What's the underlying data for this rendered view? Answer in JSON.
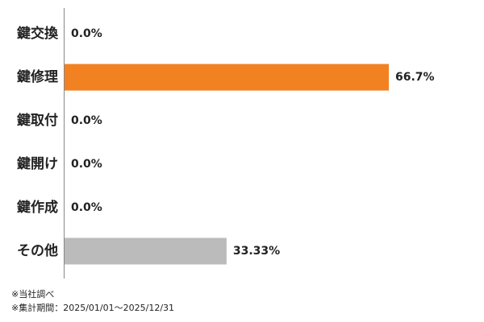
{
  "chart_data": {
    "type": "bar",
    "orientation": "horizontal",
    "categories": [
      "鍵交換",
      "鍵修理",
      "鍵取付",
      "鍵開け",
      "鍵作成",
      "その他"
    ],
    "values": [
      0,
      66.7,
      0,
      0,
      0,
      33.33
    ],
    "value_labels": [
      "0.0%",
      "66.7%",
      "0.0%",
      "0.0%",
      "0.0%",
      "33.33%"
    ],
    "colors": [
      "#f28122",
      "#f28122",
      "#f28122",
      "#f28122",
      "#f28122",
      "#bbbbbb"
    ],
    "notes": [
      "※当社調べ",
      "※集計期間：2025/01/01～2025/12/31"
    ]
  }
}
